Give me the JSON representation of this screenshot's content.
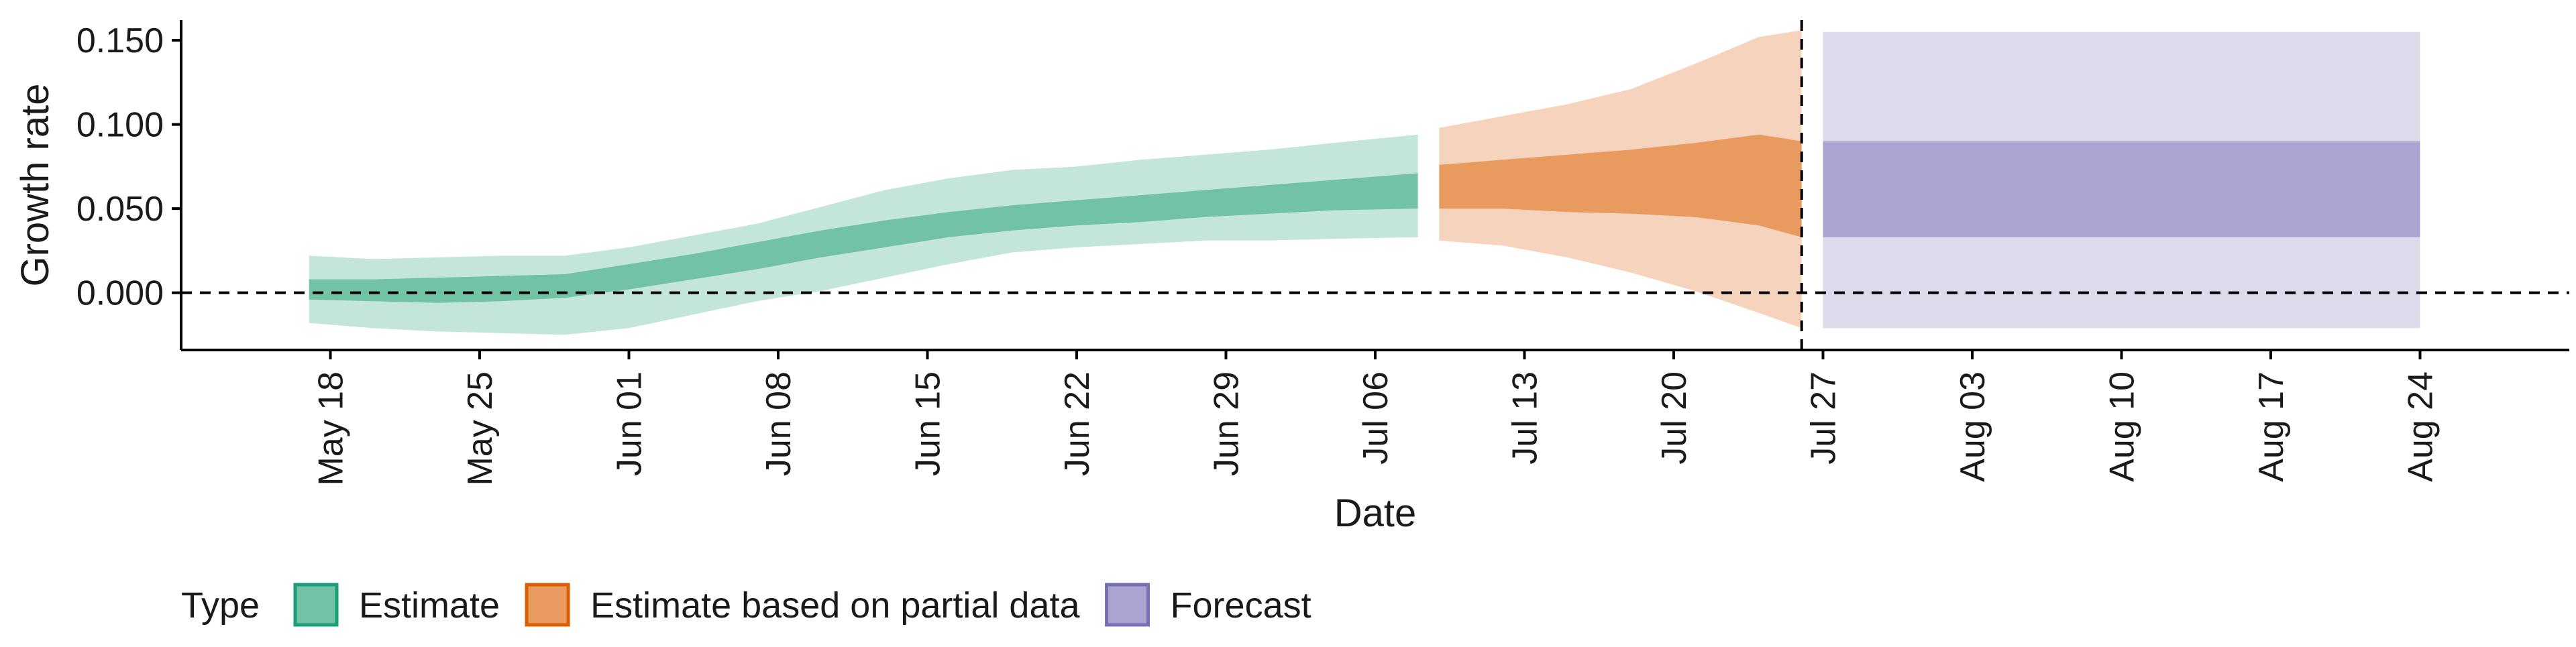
{
  "chart_data": {
    "type": "area",
    "xlabel": "Date",
    "ylabel": "Growth rate",
    "x_type": "date",
    "xlim": [
      "2020-05-11",
      "2020-08-31"
    ],
    "ylim": [
      -0.034,
      0.162
    ],
    "y_ticks": [
      0.0,
      0.05,
      0.1,
      0.15
    ],
    "y_tick_labels": [
      "0.000",
      "0.050",
      "0.100",
      "0.150"
    ],
    "x_ticks": [
      "2020-05-18",
      "2020-05-25",
      "2020-06-01",
      "2020-06-08",
      "2020-06-15",
      "2020-06-22",
      "2020-06-29",
      "2020-07-06",
      "2020-07-13",
      "2020-07-20",
      "2020-07-27",
      "2020-08-03",
      "2020-08-10",
      "2020-08-17",
      "2020-08-24"
    ],
    "x_tick_labels": [
      "May 18",
      "May 25",
      "Jun 01",
      "Jun 08",
      "Jun 15",
      "Jun 22",
      "Jun 29",
      "Jul 06",
      "Jul 13",
      "Jul 20",
      "Jul 27",
      "Aug 03",
      "Aug 10",
      "Aug 17",
      "Aug 24"
    ],
    "grid": false,
    "hline_y": 0,
    "vline_x": "2020-07-26",
    "legend": {
      "title": "Type",
      "position": "bottom-left",
      "entries": [
        {
          "label": "Estimate",
          "fill": "#72c2a6",
          "border": "#1b9e77"
        },
        {
          "label": "Estimate based on partial data",
          "fill": "#e89a5f",
          "border": "#d95f02"
        },
        {
          "label": "Forecast",
          "fill": "#a9a5d0",
          "border": "#7570b3"
        }
      ]
    },
    "series": [
      {
        "name": "Estimate",
        "outer_color": "#c4e6da",
        "inner_color": "#72c2a6",
        "x": [
          "2020-05-17",
          "2020-05-20",
          "2020-05-23",
          "2020-05-26",
          "2020-05-29",
          "2020-06-01",
          "2020-06-04",
          "2020-06-07",
          "2020-06-10",
          "2020-06-13",
          "2020-06-16",
          "2020-06-19",
          "2020-06-22",
          "2020-06-25",
          "2020-06-28",
          "2020-07-01",
          "2020-07-04",
          "2020-07-08"
        ],
        "outer_lower": [
          -0.018,
          -0.021,
          -0.023,
          -0.024,
          -0.025,
          -0.021,
          -0.013,
          -0.005,
          0.001,
          0.009,
          0.017,
          0.024,
          0.027,
          0.029,
          0.031,
          0.031,
          0.032,
          0.033
        ],
        "outer_upper": [
          0.022,
          0.02,
          0.021,
          0.022,
          0.022,
          0.027,
          0.034,
          0.041,
          0.051,
          0.061,
          0.068,
          0.073,
          0.075,
          0.079,
          0.082,
          0.085,
          0.089,
          0.094
        ],
        "inner_lower": [
          -0.004,
          -0.005,
          -0.006,
          -0.005,
          -0.003,
          0.002,
          0.008,
          0.014,
          0.021,
          0.027,
          0.033,
          0.037,
          0.04,
          0.042,
          0.045,
          0.047,
          0.049,
          0.05
        ],
        "inner_upper": [
          0.008,
          0.008,
          0.009,
          0.01,
          0.011,
          0.017,
          0.023,
          0.03,
          0.037,
          0.043,
          0.048,
          0.052,
          0.055,
          0.058,
          0.061,
          0.064,
          0.067,
          0.071
        ]
      },
      {
        "name": "Estimate based on partial data",
        "outer_color": "#f5d3bc",
        "inner_color": "#e89a5f",
        "x": [
          "2020-07-09",
          "2020-07-12",
          "2020-07-15",
          "2020-07-18",
          "2020-07-21",
          "2020-07-24",
          "2020-07-26"
        ],
        "outer_lower": [
          0.031,
          0.028,
          0.021,
          0.012,
          0.001,
          -0.012,
          -0.021
        ],
        "outer_upper": [
          0.098,
          0.105,
          0.112,
          0.121,
          0.136,
          0.152,
          0.156
        ],
        "inner_lower": [
          0.05,
          0.05,
          0.048,
          0.047,
          0.045,
          0.04,
          0.033
        ],
        "inner_upper": [
          0.076,
          0.079,
          0.082,
          0.085,
          0.089,
          0.094,
          0.09
        ]
      },
      {
        "name": "Forecast",
        "outer_color": "#dcdbeb",
        "inner_color": "#a9a5d0",
        "x": [
          "2020-07-27",
          "2020-08-24"
        ],
        "outer_lower": [
          -0.021,
          -0.021
        ],
        "outer_upper": [
          0.155,
          0.155
        ],
        "inner_lower": [
          0.033,
          0.033
        ],
        "inner_upper": [
          0.09,
          0.09
        ]
      }
    ]
  }
}
